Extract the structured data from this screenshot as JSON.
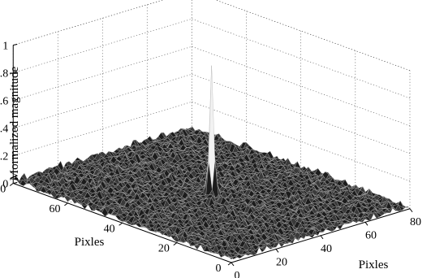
{
  "chart_data": {
    "type": "surface3d",
    "zlabel": "Mormalized magnitude",
    "xlabel": "Pixles",
    "ylabel": "Pixles",
    "xlim": [
      0,
      80
    ],
    "ylim": [
      0,
      80
    ],
    "zlim": [
      0,
      1
    ],
    "x_ticks": [
      "0",
      "20",
      "40",
      "60",
      "80"
    ],
    "y_ticks": [
      "0",
      "20",
      "40",
      "60",
      "80"
    ],
    "z_ticks": [
      "0",
      "0.2",
      "0.4",
      "0.6",
      "0.8",
      "1"
    ],
    "grid": true,
    "grid_size": 64,
    "peak": {
      "x": 32,
      "y": 32,
      "z": 0.92
    },
    "noise_floor_max": 0.06,
    "surface_color": "#2a2a2a",
    "mesh_color": "#bdbdbd"
  }
}
